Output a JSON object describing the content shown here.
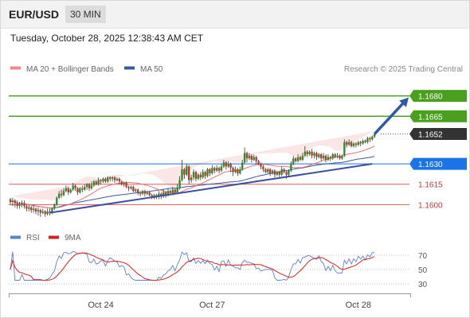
{
  "header": {
    "symbol": "EUR/USD",
    "timeframe": "30 MIN"
  },
  "timestamp": "Tuesday, October 28, 2025 12:38:43 AM CET",
  "legend": [
    {
      "label": "MA 20 + Bollinger Bands",
      "color": "#f08a8a"
    },
    {
      "label": "MA 50",
      "color": "#3a5a9a"
    }
  ],
  "copyright": "Research © 2025 Trading Central",
  "colors": {
    "bull": "#2a8f2a",
    "bear": "#c0392b",
    "resistance": "#4aa01e",
    "support": "#1a73e8",
    "pivot": "#e05a5a",
    "current": "#333333",
    "trend": "#3a4fa0"
  },
  "chart_data": {
    "type": "candlestick",
    "ylim": [
      1.1585,
      1.1695
    ],
    "n_bars": 160,
    "levels": [
      {
        "value": 1.168,
        "label": "1.1680",
        "kind": "resistance"
      },
      {
        "value": 1.1665,
        "label": "1.1665",
        "kind": "resistance"
      },
      {
        "value": 1.1652,
        "label": "1.1652",
        "kind": "current"
      },
      {
        "value": 1.163,
        "label": "1.1630",
        "kind": "support"
      },
      {
        "value": 1.1615,
        "label": "1.1615",
        "kind": "pivot"
      },
      {
        "value": 1.16,
        "label": "1.1600",
        "kind": "pivot"
      }
    ],
    "trendline": {
      "from": [
        17,
        1.1594
      ],
      "to": [
        156,
        1.163
      ]
    },
    "projection": {
      "from": [
        156,
        1.1652
      ],
      "to": [
        168,
        1.168
      ]
    },
    "candles": [
      [
        1.1604,
        1.1602,
        1.1605,
        1.16
      ],
      [
        1.1602,
        1.1603,
        1.1605,
        1.1599
      ],
      [
        1.1603,
        1.1601,
        1.1604,
        1.1598
      ],
      [
        1.1601,
        1.1599,
        1.1603,
        1.1597
      ],
      [
        1.1599,
        1.16,
        1.1602,
        1.1597
      ],
      [
        1.16,
        1.1601,
        1.1603,
        1.1598
      ],
      [
        1.1601,
        1.1599,
        1.1603,
        1.1597
      ],
      [
        1.1599,
        1.1597,
        1.16,
        1.1595
      ],
      [
        1.1597,
        1.1598,
        1.16,
        1.1595
      ],
      [
        1.1598,
        1.1596,
        1.1599,
        1.1594
      ],
      [
        1.1596,
        1.1597,
        1.16,
        1.1594
      ],
      [
        1.1597,
        1.1595,
        1.1598,
        1.1593
      ],
      [
        1.1595,
        1.1596,
        1.1598,
        1.1592
      ],
      [
        1.1596,
        1.1594,
        1.1597,
        1.1591
      ],
      [
        1.1594,
        1.1595,
        1.1597,
        1.1593
      ],
      [
        1.1595,
        1.1593,
        1.1596,
        1.1591
      ],
      [
        1.1593,
        1.1595,
        1.1597,
        1.1592
      ],
      [
        1.1595,
        1.1594,
        1.1597,
        1.1592
      ],
      [
        1.1594,
        1.1597,
        1.1598,
        1.1593
      ],
      [
        1.1597,
        1.16,
        1.1601,
        1.1596
      ],
      [
        1.16,
        1.1605,
        1.1606,
        1.1599
      ],
      [
        1.1605,
        1.1608,
        1.161,
        1.1604
      ],
      [
        1.1608,
        1.1607,
        1.1611,
        1.1605
      ],
      [
        1.1607,
        1.161,
        1.1612,
        1.1606
      ],
      [
        1.161,
        1.1612,
        1.1614,
        1.1609
      ],
      [
        1.1612,
        1.1609,
        1.1613,
        1.1607
      ],
      [
        1.1609,
        1.1611,
        1.1612,
        1.1608
      ],
      [
        1.1611,
        1.1614,
        1.1616,
        1.161
      ],
      [
        1.1614,
        1.1612,
        1.1615,
        1.161
      ],
      [
        1.1612,
        1.1609,
        1.1613,
        1.1607
      ],
      [
        1.1609,
        1.1612,
        1.1613,
        1.1608
      ],
      [
        1.1612,
        1.1611,
        1.1614,
        1.1609
      ],
      [
        1.1611,
        1.1613,
        1.1615,
        1.161
      ],
      [
        1.1613,
        1.1615,
        1.1616,
        1.1611
      ],
      [
        1.1615,
        1.1612,
        1.1616,
        1.161
      ],
      [
        1.1612,
        1.1614,
        1.1617,
        1.1611
      ],
      [
        1.1614,
        1.1617,
        1.1618,
        1.1613
      ],
      [
        1.1617,
        1.1615,
        1.1618,
        1.1614
      ],
      [
        1.1615,
        1.1618,
        1.162,
        1.1614
      ],
      [
        1.1618,
        1.1617,
        1.1619,
        1.1615
      ],
      [
        1.1617,
        1.1619,
        1.162,
        1.1616
      ],
      [
        1.1619,
        1.1617,
        1.162,
        1.1616
      ],
      [
        1.1617,
        1.162,
        1.1621,
        1.1616
      ],
      [
        1.162,
        1.1619,
        1.1621,
        1.1617
      ],
      [
        1.1619,
        1.162,
        1.1621,
        1.1617
      ],
      [
        1.162,
        1.1618,
        1.1621,
        1.1616
      ],
      [
        1.1618,
        1.1619,
        1.162,
        1.1617
      ],
      [
        1.1619,
        1.1617,
        1.162,
        1.1615
      ],
      [
        1.1617,
        1.1615,
        1.1618,
        1.1614
      ],
      [
        1.1615,
        1.1616,
        1.1617,
        1.1613
      ],
      [
        1.1616,
        1.1613,
        1.1617,
        1.1612
      ],
      [
        1.1613,
        1.1612,
        1.1614,
        1.161
      ],
      [
        1.1612,
        1.1613,
        1.1614,
        1.1611
      ],
      [
        1.1613,
        1.161,
        1.1614,
        1.1609
      ],
      [
        1.161,
        1.1611,
        1.1612,
        1.1609
      ],
      [
        1.1611,
        1.1609,
        1.1612,
        1.1607
      ],
      [
        1.1609,
        1.1608,
        1.161,
        1.1606
      ],
      [
        1.1608,
        1.161,
        1.1611,
        1.1607
      ],
      [
        1.161,
        1.1608,
        1.1611,
        1.1606
      ],
      [
        1.1608,
        1.1609,
        1.161,
        1.1607
      ],
      [
        1.1609,
        1.1607,
        1.161,
        1.1606
      ],
      [
        1.1607,
        1.1605,
        1.1608,
        1.1604
      ],
      [
        1.1605,
        1.1607,
        1.1608,
        1.1604
      ],
      [
        1.1607,
        1.1606,
        1.1608,
        1.1604
      ],
      [
        1.1606,
        1.1608,
        1.161,
        1.1604
      ],
      [
        1.1608,
        1.1606,
        1.1609,
        1.1604
      ],
      [
        1.1606,
        1.1609,
        1.1611,
        1.1605
      ],
      [
        1.1609,
        1.1607,
        1.161,
        1.1605
      ],
      [
        1.1607,
        1.161,
        1.1612,
        1.1606
      ],
      [
        1.161,
        1.1609,
        1.1611,
        1.1607
      ],
      [
        1.1609,
        1.1611,
        1.1613,
        1.1607
      ],
      [
        1.1611,
        1.1609,
        1.1612,
        1.1608
      ],
      [
        1.1609,
        1.1612,
        1.1615,
        1.1608
      ],
      [
        1.1612,
        1.1618,
        1.1621,
        1.1611
      ],
      [
        1.1618,
        1.1626,
        1.1633,
        1.1617
      ],
      [
        1.1626,
        1.1622,
        1.1627,
        1.1619
      ],
      [
        1.1622,
        1.1628,
        1.163,
        1.1621
      ],
      [
        1.1628,
        1.1618,
        1.1629,
        1.1615
      ],
      [
        1.1618,
        1.162,
        1.1622,
        1.1616
      ],
      [
        1.162,
        1.1624,
        1.1626,
        1.1618
      ],
      [
        1.1624,
        1.1619,
        1.1625,
        1.1617
      ],
      [
        1.1619,
        1.1622,
        1.1623,
        1.1618
      ],
      [
        1.1622,
        1.162,
        1.1624,
        1.1618
      ],
      [
        1.162,
        1.1624,
        1.1626,
        1.1619
      ],
      [
        1.1624,
        1.1621,
        1.1625,
        1.1619
      ],
      [
        1.1621,
        1.1626,
        1.1627,
        1.162
      ],
      [
        1.1626,
        1.1623,
        1.1627,
        1.1621
      ],
      [
        1.1623,
        1.1627,
        1.1629,
        1.1622
      ],
      [
        1.1627,
        1.1625,
        1.1628,
        1.1623
      ],
      [
        1.1625,
        1.1627,
        1.1629,
        1.1624
      ],
      [
        1.1627,
        1.1625,
        1.1628,
        1.1623
      ],
      [
        1.1625,
        1.1628,
        1.163,
        1.1624
      ],
      [
        1.1628,
        1.1631,
        1.1633,
        1.1627
      ],
      [
        1.1631,
        1.1628,
        1.1632,
        1.1626
      ],
      [
        1.1628,
        1.163,
        1.1632,
        1.1627
      ],
      [
        1.163,
        1.1627,
        1.1631,
        1.1624
      ],
      [
        1.1627,
        1.1624,
        1.1628,
        1.1621
      ],
      [
        1.1624,
        1.1626,
        1.1628,
        1.1623
      ],
      [
        1.1626,
        1.1623,
        1.1627,
        1.1621
      ],
      [
        1.1623,
        1.1626,
        1.1628,
        1.1622
      ],
      [
        1.1626,
        1.1631,
        1.1633,
        1.1625
      ],
      [
        1.1631,
        1.1638,
        1.1642,
        1.163
      ],
      [
        1.1638,
        1.1634,
        1.1639,
        1.1631
      ],
      [
        1.1634,
        1.1636,
        1.1638,
        1.1633
      ],
      [
        1.1636,
        1.1633,
        1.1637,
        1.1631
      ],
      [
        1.1633,
        1.1635,
        1.1637,
        1.1632
      ],
      [
        1.1635,
        1.1632,
        1.1636,
        1.163
      ],
      [
        1.1632,
        1.163,
        1.1633,
        1.1629
      ],
      [
        1.163,
        1.1628,
        1.1631,
        1.1626
      ],
      [
        1.1628,
        1.1626,
        1.1629,
        1.1624
      ],
      [
        1.1626,
        1.1624,
        1.1627,
        1.1623
      ],
      [
        1.1624,
        1.1626,
        1.1627,
        1.1623
      ],
      [
        1.1626,
        1.1623,
        1.1627,
        1.1621
      ],
      [
        1.1623,
        1.1625,
        1.1626,
        1.1622
      ],
      [
        1.1625,
        1.1622,
        1.1626,
        1.162
      ],
      [
        1.1622,
        1.1624,
        1.1625,
        1.1621
      ],
      [
        1.1624,
        1.1622,
        1.1625,
        1.162
      ],
      [
        1.1622,
        1.1626,
        1.1628,
        1.1621
      ],
      [
        1.1626,
        1.1624,
        1.1627,
        1.1623
      ],
      [
        1.1624,
        1.1622,
        1.1625,
        1.1619
      ],
      [
        1.1622,
        1.1625,
        1.1626,
        1.1621
      ],
      [
        1.1625,
        1.163,
        1.1632,
        1.1624
      ],
      [
        1.163,
        1.1634,
        1.1636,
        1.1629
      ],
      [
        1.1634,
        1.1632,
        1.1635,
        1.1631
      ],
      [
        1.1632,
        1.1635,
        1.1637,
        1.1631
      ],
      [
        1.1635,
        1.1633,
        1.1636,
        1.1632
      ],
      [
        1.1633,
        1.1636,
        1.1638,
        1.1632
      ],
      [
        1.1636,
        1.1639,
        1.1643,
        1.1635
      ],
      [
        1.1639,
        1.1637,
        1.164,
        1.1635
      ],
      [
        1.1637,
        1.1639,
        1.164,
        1.1636
      ],
      [
        1.1639,
        1.1636,
        1.1641,
        1.1634
      ],
      [
        1.1636,
        1.1638,
        1.1639,
        1.1634
      ],
      [
        1.1638,
        1.1635,
        1.1639,
        1.1633
      ],
      [
        1.1635,
        1.1637,
        1.1638,
        1.1634
      ],
      [
        1.1637,
        1.1634,
        1.1638,
        1.1632
      ],
      [
        1.1634,
        1.1636,
        1.1638,
        1.1633
      ],
      [
        1.1636,
        1.1633,
        1.1637,
        1.1631
      ],
      [
        1.1633,
        1.1635,
        1.1637,
        1.1632
      ],
      [
        1.1635,
        1.1634,
        1.1636,
        1.1632
      ],
      [
        1.1634,
        1.1637,
        1.1638,
        1.1633
      ],
      [
        1.1637,
        1.1635,
        1.1638,
        1.1634
      ],
      [
        1.1635,
        1.1636,
        1.1638,
        1.1634
      ],
      [
        1.1636,
        1.1634,
        1.1637,
        1.1633
      ],
      [
        1.1634,
        1.1636,
        1.1637,
        1.1633
      ],
      [
        1.1636,
        1.1646,
        1.1648,
        1.1635
      ],
      [
        1.1646,
        1.1644,
        1.1647,
        1.1642
      ],
      [
        1.1644,
        1.1646,
        1.1648,
        1.1643
      ],
      [
        1.1646,
        1.1643,
        1.1647,
        1.1642
      ],
      [
        1.1643,
        1.1645,
        1.1646,
        1.1642
      ],
      [
        1.1645,
        1.1644,
        1.1646,
        1.1642
      ],
      [
        1.1644,
        1.1646,
        1.1647,
        1.1643
      ],
      [
        1.1646,
        1.1645,
        1.1647,
        1.1643
      ],
      [
        1.1645,
        1.1647,
        1.1648,
        1.1644
      ],
      [
        1.1647,
        1.1646,
        1.1648,
        1.1645
      ],
      [
        1.1646,
        1.1649,
        1.165,
        1.1645
      ],
      [
        1.1649,
        1.1648,
        1.165,
        1.1646
      ],
      [
        1.1648,
        1.165,
        1.1651,
        1.1647
      ],
      [
        1.165,
        1.1652,
        1.1653,
        1.1649
      ]
    ]
  },
  "rsi_panel": {
    "legend": [
      {
        "label": "RSI",
        "color": "#5b7fd6"
      },
      {
        "label": "9MA",
        "color": "#d62020"
      }
    ],
    "ylim": [
      20,
      80
    ],
    "levels": [
      "70",
      "50",
      "30"
    ]
  },
  "x_axis": {
    "labels": [
      {
        "text": "Oct 24",
        "index": 39
      },
      {
        "text": "Oct 27",
        "index": 87
      },
      {
        "text": "Oct 28",
        "index": 150
      }
    ]
  }
}
